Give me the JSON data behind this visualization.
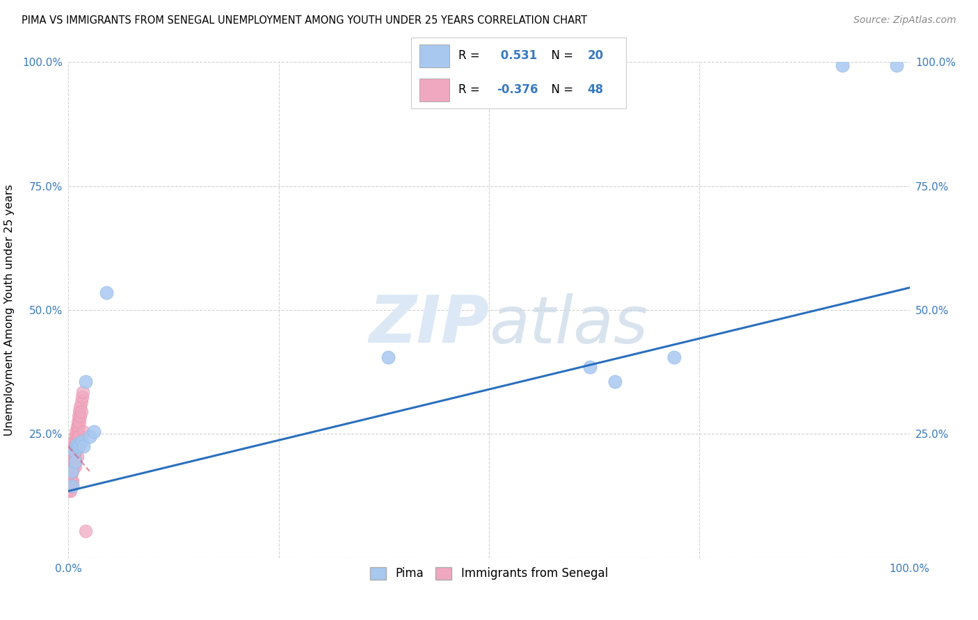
{
  "title": "PIMA VS IMMIGRANTS FROM SENEGAL UNEMPLOYMENT AMONG YOUTH UNDER 25 YEARS CORRELATION CHART",
  "source": "Source: ZipAtlas.com",
  "ylabel": "Unemployment Among Youth under 25 years",
  "xlim": [
    0,
    1.0
  ],
  "ylim": [
    0,
    1.0
  ],
  "pima_R": 0.531,
  "pima_N": 20,
  "senegal_R": -0.376,
  "senegal_N": 48,
  "pima_color": "#a8c8f0",
  "senegal_color": "#f0a8c0",
  "trendline_blue": "#2a6fbd",
  "trendline_pink": "#d06080",
  "watermark_color": "#dce8f5",
  "pima_x": [
    0.004,
    0.005,
    0.007,
    0.008,
    0.009,
    0.01,
    0.012,
    0.014,
    0.016,
    0.018,
    0.02,
    0.025,
    0.03,
    0.045,
    0.38,
    0.62,
    0.65,
    0.72,
    0.92,
    0.985
  ],
  "pima_y": [
    0.175,
    0.145,
    0.215,
    0.195,
    0.225,
    0.23,
    0.225,
    0.23,
    0.235,
    0.225,
    0.355,
    0.245,
    0.255,
    0.535,
    0.405,
    0.385,
    0.355,
    0.405,
    0.993,
    0.993
  ],
  "senegal_x": [
    0.001,
    0.001,
    0.002,
    0.002,
    0.002,
    0.003,
    0.003,
    0.003,
    0.004,
    0.004,
    0.004,
    0.005,
    0.005,
    0.005,
    0.005,
    0.006,
    0.006,
    0.006,
    0.007,
    0.007,
    0.007,
    0.008,
    0.008,
    0.008,
    0.008,
    0.009,
    0.009,
    0.009,
    0.01,
    0.01,
    0.01,
    0.01,
    0.011,
    0.011,
    0.011,
    0.012,
    0.012,
    0.012,
    0.013,
    0.013,
    0.014,
    0.014,
    0.015,
    0.015,
    0.016,
    0.017,
    0.018,
    0.02
  ],
  "senegal_y": [
    0.165,
    0.135,
    0.175,
    0.155,
    0.135,
    0.185,
    0.165,
    0.145,
    0.195,
    0.175,
    0.155,
    0.215,
    0.195,
    0.175,
    0.155,
    0.225,
    0.205,
    0.185,
    0.235,
    0.215,
    0.195,
    0.245,
    0.225,
    0.205,
    0.185,
    0.255,
    0.235,
    0.215,
    0.265,
    0.245,
    0.225,
    0.205,
    0.275,
    0.255,
    0.235,
    0.285,
    0.265,
    0.245,
    0.295,
    0.275,
    0.305,
    0.285,
    0.315,
    0.295,
    0.325,
    0.335,
    0.255,
    0.055
  ],
  "pima_trendline_x": [
    0.0,
    1.0
  ],
  "pima_trendline_y": [
    0.135,
    0.545
  ],
  "senegal_trendline_x": [
    0.0,
    0.025
  ],
  "senegal_trendline_y": [
    0.225,
    0.175
  ]
}
